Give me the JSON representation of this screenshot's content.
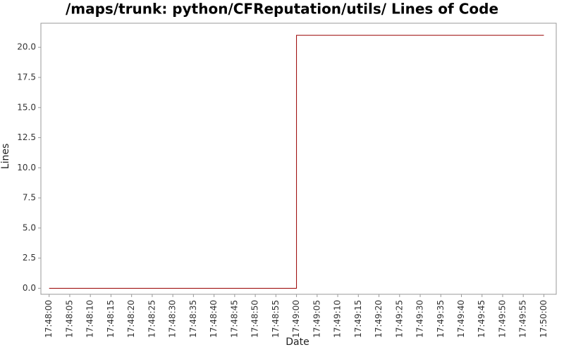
{
  "chart_data": {
    "type": "line",
    "title": "/maps/trunk: python/CFReputation/utils/ Lines of Code",
    "x_label": "Date",
    "y_label": "Lines",
    "x": [
      "17:48:00",
      "17:49:00",
      "17:50:00"
    ],
    "series": [
      {
        "name": "Lines",
        "color": "#990000",
        "values": [
          0,
          21,
          21
        ]
      }
    ],
    "step": "post",
    "xlim": [
      "17:47:58",
      "17:50:03"
    ],
    "xticks": [
      "17:48:00",
      "17:48:05",
      "17:48:10",
      "17:48:15",
      "17:48:20",
      "17:48:25",
      "17:48:30",
      "17:48:35",
      "17:48:40",
      "17:48:45",
      "17:48:50",
      "17:48:55",
      "17:49:00",
      "17:49:05",
      "17:49:10",
      "17:49:15",
      "17:49:20",
      "17:49:25",
      "17:49:30",
      "17:49:35",
      "17:49:40",
      "17:49:45",
      "17:49:50",
      "17:49:55",
      "17:50:00"
    ],
    "ylim": [
      -0.5,
      22
    ],
    "yticks": [
      {
        "value": 0,
        "label": "0.0"
      },
      2.5,
      {
        "value": 5,
        "label": "5.0"
      },
      7.5,
      {
        "value": 10,
        "label": "10.0"
      },
      12.5,
      {
        "value": 15,
        "label": "15.0"
      },
      17.5,
      {
        "value": 20,
        "label": "20.0"
      }
    ],
    "grid": false
  }
}
